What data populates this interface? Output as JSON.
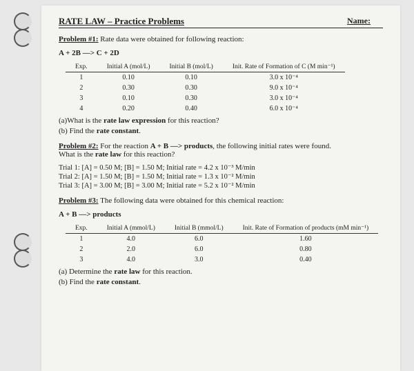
{
  "header": {
    "title": "RATE LAW – Practice Problems",
    "name_label": "Name:"
  },
  "p1": {
    "head": "Problem #1:",
    "intro": " Rate data were obtained for following reaction:",
    "equation": "A + 2B ––> C + 2D",
    "cols": [
      "Exp.",
      "Initial A\n(mol/L)",
      "Initial B\n(mol/L)",
      "Init. Rate of Formation\nof C (M min⁻¹)"
    ],
    "rows": [
      [
        "1",
        "0.10",
        "0.10",
        "3.0 x 10⁻⁴"
      ],
      [
        "2",
        "0.30",
        "0.30",
        "9.0 x 10⁻⁴"
      ],
      [
        "3",
        "0.10",
        "0.30",
        "3.0 x 10⁻⁴"
      ],
      [
        "4",
        "0.20",
        "0.40",
        "6.0 x 10⁻⁴"
      ]
    ],
    "qa": "(a)What is the ",
    "qa_bold": "rate law expression",
    "qa_end": " for this reaction?",
    "qb": "(b)  Find the ",
    "qb_bold": "rate constant",
    "qb_end": "."
  },
  "p2": {
    "head": "Problem #2:",
    "intro1": " For the reaction ",
    "reaction": "A + B ––> products",
    "intro2": ", the following initial rates were found.",
    "intro3": "What is the ",
    "intro3_bold": "rate law",
    "intro3_end": " for this reaction?",
    "trials": [
      "Trial 1: [A] = 0.50 M; [B] = 1.50 M; Initial rate = 4.2 x 10⁻³ M/min",
      "Trial 2: [A] = 1.50 M; [B] = 1.50 M; Initial rate = 1.3 x 10⁻² M/min",
      "Trial 3: [A] = 3.00 M; [B] = 3.00 M; Initial rate = 5.2 x 10⁻² M/min"
    ]
  },
  "p3": {
    "head": "Problem #3:",
    "intro": " The following data were obtained for this chemical reaction:",
    "equation": "A + B ––> products",
    "cols": [
      "Exp.",
      "Initial A\n(mmol/L)",
      "Initial B\n(mmol/L)",
      "Init. Rate of Formation\nof products (mM min⁻¹)"
    ],
    "rows": [
      [
        "1",
        "4.0",
        "6.0",
        "1.60"
      ],
      [
        "2",
        "2.0",
        "6.0",
        "0.80"
      ],
      [
        "3",
        "4.0",
        "3.0",
        "0.40"
      ]
    ],
    "qa": "(a) Determine the ",
    "qa_bold": "rate law",
    "qa_end": " for this reaction.",
    "qb": "(b) Find the ",
    "qb_bold": "rate constant",
    "qb_end": "."
  }
}
